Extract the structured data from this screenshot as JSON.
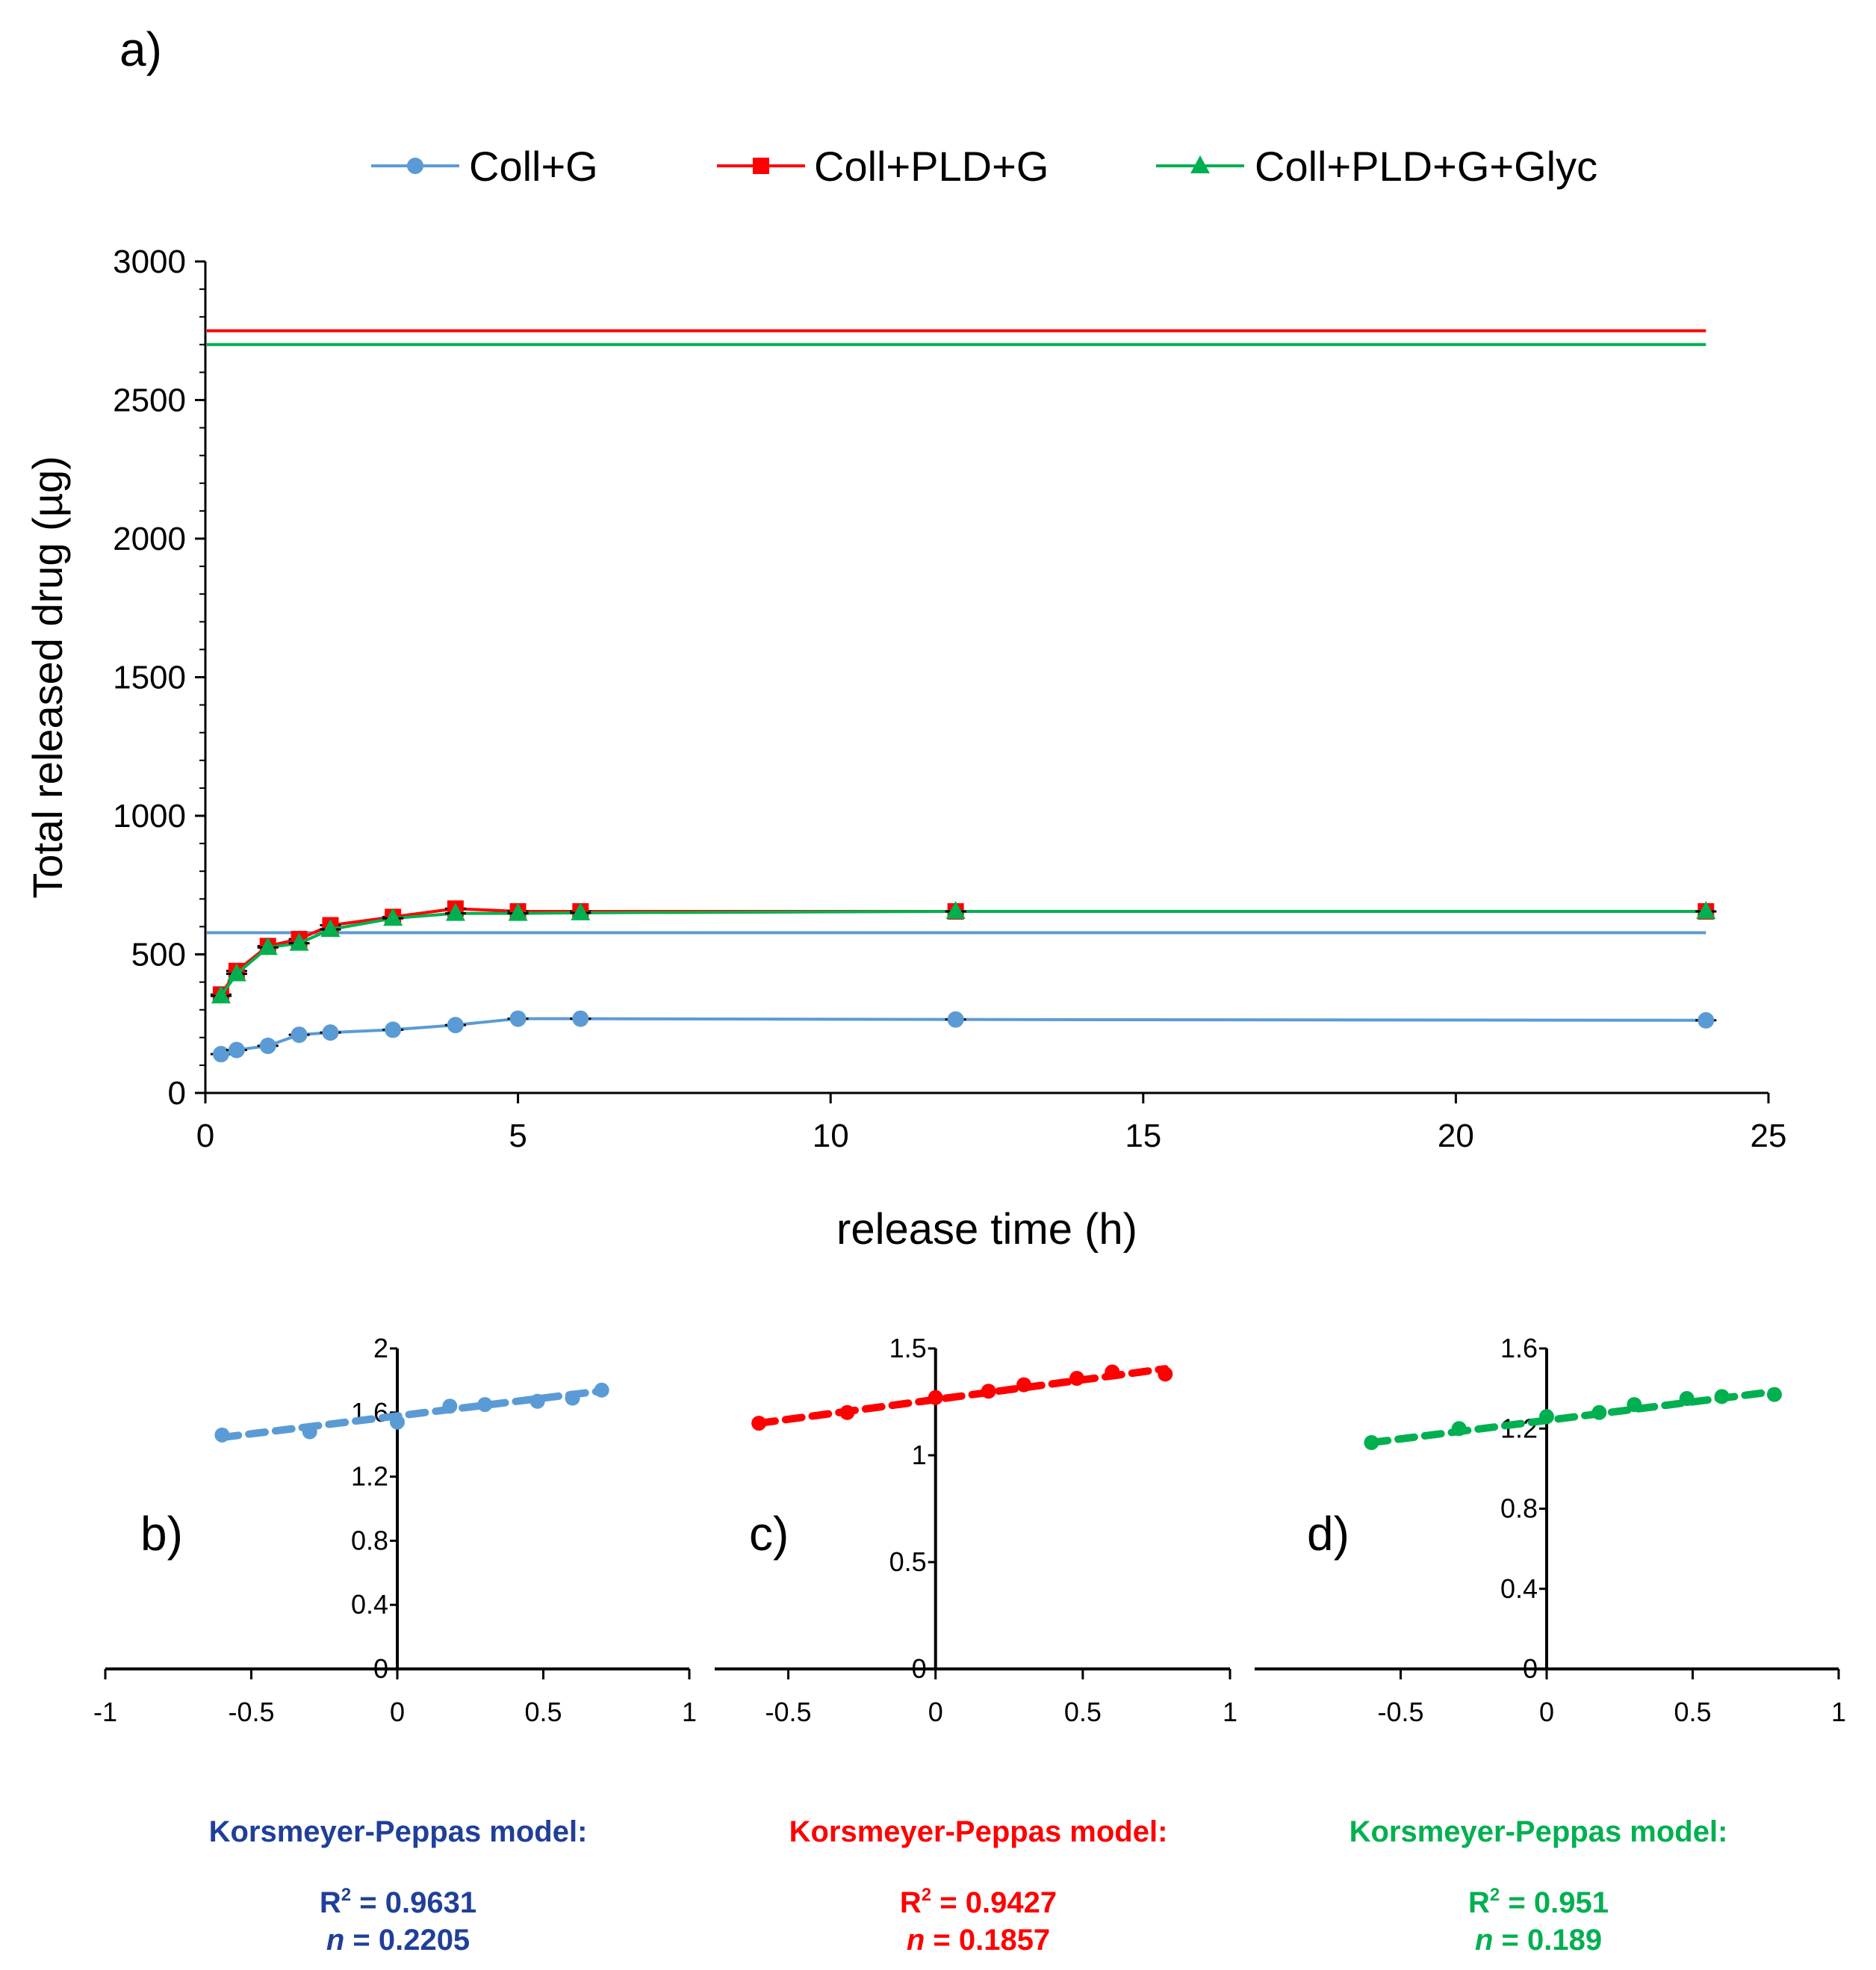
{
  "panel_labels": {
    "a": "a)",
    "b": "b)",
    "c": "c)",
    "d": "d)"
  },
  "colors": {
    "blue": "#5B9BD5",
    "red": "#FF0000",
    "green": "#00B050",
    "blue_text": "#1F3F99",
    "red_text": "#FF0000",
    "green_text": "#00B050"
  },
  "chart_data": [
    {
      "type": "line",
      "panel": "a)",
      "xlabel": "release time (h)",
      "ylabel": "Total released drug (µg)",
      "xlim": [
        0,
        25
      ],
      "ylim": [
        0,
        3000
      ],
      "xticks": [
        "0",
        "5",
        "10",
        "15",
        "20",
        "25"
      ],
      "yticks": [
        "0",
        "500",
        "1000",
        "1500",
        "2000",
        "2500",
        "3000"
      ],
      "legend_position": "top-center",
      "x": [
        0.25,
        0.5,
        1,
        1.5,
        2,
        3,
        4,
        5,
        6,
        12,
        24
      ],
      "series": [
        {
          "name": "Coll+G",
          "color": "#5B9BD5",
          "marker": "circle",
          "values": [
            140,
            155,
            170,
            210,
            218,
            228,
            245,
            268,
            268,
            265,
            262
          ],
          "reference_line": 578
        },
        {
          "name": "Coll+PLD+G",
          "color": "#FF0000",
          "marker": "square",
          "values": [
            355,
            440,
            530,
            555,
            605,
            635,
            665,
            655,
            655,
            655,
            655
          ],
          "reference_line": 2750
        },
        {
          "name": "Coll+PLD+G+Glyc",
          "color": "#00B050",
          "marker": "triangle",
          "values": [
            350,
            430,
            525,
            540,
            590,
            630,
            648,
            648,
            650,
            655,
            655
          ],
          "reference_line": 2700
        }
      ]
    },
    {
      "type": "scatter",
      "panel": "b)",
      "model_title": "Korsmeyer-Peppas model:",
      "r2_label": "R",
      "r2_sup": "2",
      "r2_value": " = 0.9631",
      "n_label": "n",
      "n_value": " = 0.2205",
      "xlim": [
        -1,
        1
      ],
      "ylim": [
        0,
        2
      ],
      "xticks": [
        "-1",
        "-0.5",
        "0",
        "0.5",
        "1"
      ],
      "yticks": [
        "0",
        "0.4",
        "0.8",
        "1.2",
        "1.6",
        "2"
      ],
      "color": "#5B9BD5",
      "x": [
        -0.6,
        -0.3,
        0,
        0.18,
        0.3,
        0.48,
        0.6,
        0.7
      ],
      "y": [
        1.46,
        1.48,
        1.54,
        1.64,
        1.65,
        1.67,
        1.69,
        1.74
      ],
      "trend": [
        [
          -0.6,
          1.445
        ],
        [
          0.7,
          1.735
        ]
      ]
    },
    {
      "type": "scatter",
      "panel": "c)",
      "model_title": "Korsmeyer-Peppas model:",
      "r2_label": "R",
      "r2_sup": "2",
      "r2_value": " = 0.9427",
      "n_label": "n",
      "n_value": " = 0.1857",
      "xlim": [
        -0.75,
        1
      ],
      "ylim": [
        0,
        1.5
      ],
      "xticks": [
        "-0.5",
        "0",
        "0.5",
        "1"
      ],
      "yticks": [
        "0",
        "0.5",
        "1",
        "1.5"
      ],
      "color": "#FF0000",
      "x": [
        -0.6,
        -0.3,
        0,
        0.18,
        0.3,
        0.48,
        0.6,
        0.78
      ],
      "y": [
        1.15,
        1.2,
        1.27,
        1.3,
        1.33,
        1.36,
        1.39,
        1.38
      ],
      "trend": [
        [
          -0.6,
          1.15
        ],
        [
          0.78,
          1.405
        ]
      ]
    },
    {
      "type": "scatter",
      "panel": "d)",
      "model_title": "Korsmeyer-Peppas model:",
      "r2_label": "R",
      "r2_sup": "2",
      "r2_value": " = 0.951",
      "n_label": "n",
      "n_value": " = 0.189",
      "xlim": [
        -1,
        1
      ],
      "ylim": [
        0,
        1.6
      ],
      "xticks": [
        "-0.5",
        "0",
        "0.5",
        "1"
      ],
      "yticks": [
        "0",
        "0.4",
        "0.8",
        "1.2",
        "1.6"
      ],
      "color": "#00B050",
      "x": [
        -0.6,
        -0.3,
        0,
        0.18,
        0.3,
        0.48,
        0.6,
        0.78
      ],
      "y": [
        1.13,
        1.2,
        1.26,
        1.28,
        1.32,
        1.35,
        1.36,
        1.37
      ],
      "trend": [
        [
          -0.6,
          1.13
        ],
        [
          0.78,
          1.385
        ]
      ]
    }
  ]
}
